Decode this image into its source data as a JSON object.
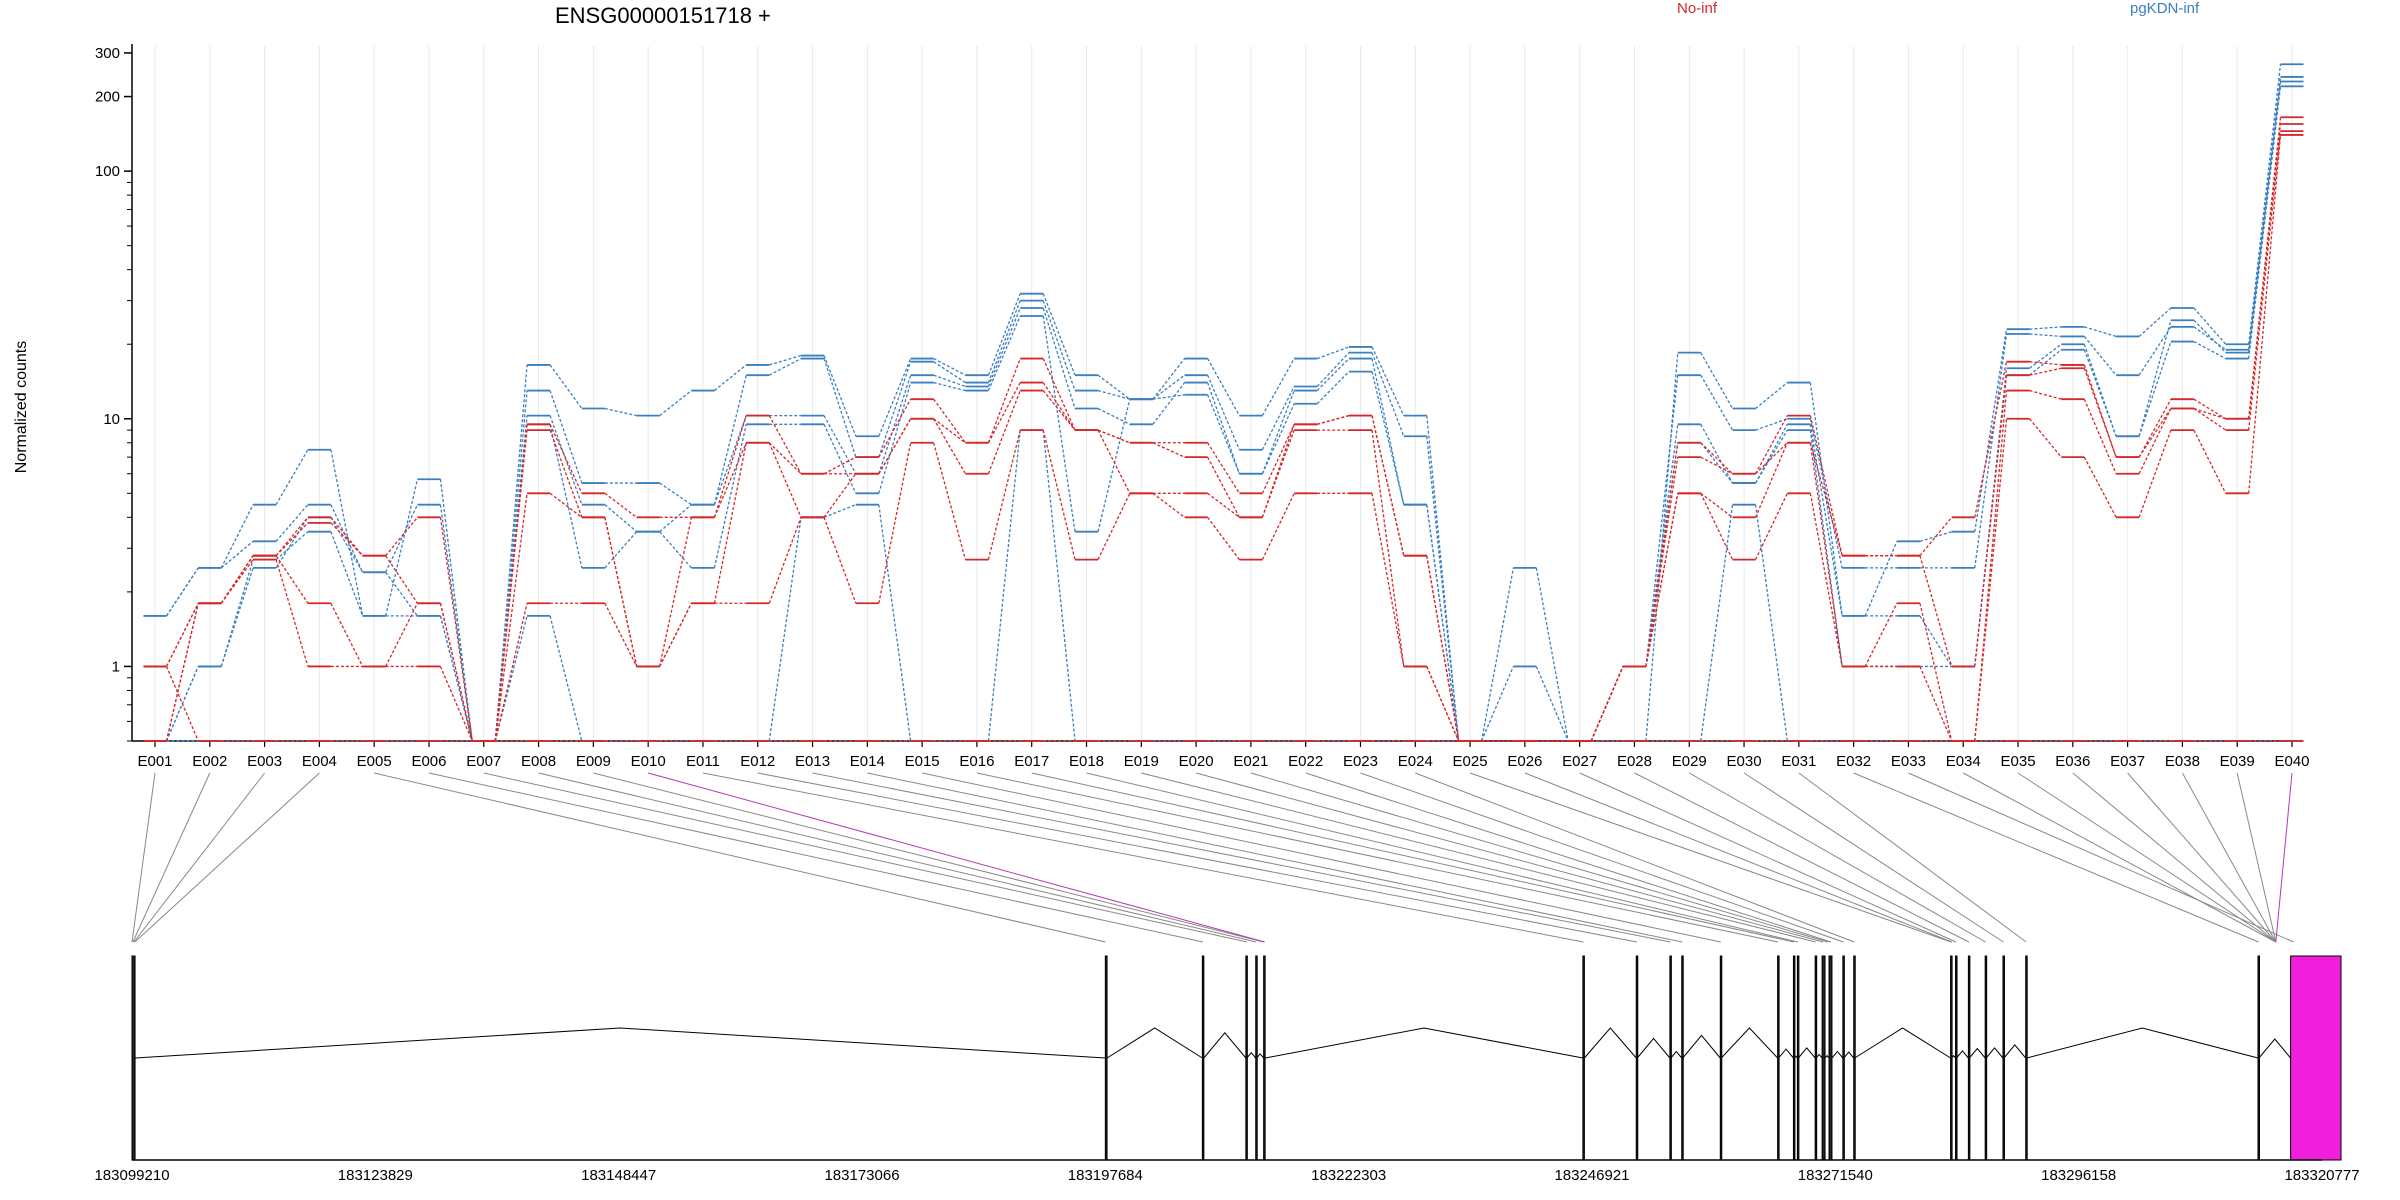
{
  "chart_data": {
    "type": "line",
    "title": "ENSG00000151718 +",
    "ylabel": "Normalized counts",
    "y_scale": "log",
    "ylim": [
      0.5,
      320
    ],
    "y_ticks": [
      1,
      10,
      100,
      200,
      300
    ],
    "y_tick_labels": [
      "1",
      "10",
      "100",
      "200",
      "300"
    ],
    "grid": "vertical lines at exon centers",
    "legend": [
      {
        "name": "No-inf",
        "color": "#d62728",
        "placement": "top-center"
      },
      {
        "name": "pgKDN-inf",
        "color": "#3a7fc0",
        "placement": "top-right"
      }
    ],
    "categories": [
      "E001",
      "E002",
      "E003",
      "E004",
      "E005",
      "E006",
      "E007",
      "E008",
      "E009",
      "E010",
      "E011",
      "E012",
      "E013",
      "E014",
      "E015",
      "E016",
      "E017",
      "E018",
      "E019",
      "E020",
      "E021",
      "E022",
      "E023",
      "E024",
      "E025",
      "E026",
      "E027",
      "E028",
      "E029",
      "E030",
      "E031",
      "E032",
      "E033",
      "E034",
      "E035",
      "E036",
      "E037",
      "E038",
      "E039",
      "E040"
    ],
    "series": [
      {
        "group": "pgKDN-inf",
        "color": "#3a7fc0",
        "values": [
          1.6,
          2.5,
          4.5,
          7.5,
          1.6,
          5.7,
          0.5,
          16.5,
          11,
          10.3,
          13,
          16.5,
          18,
          8.5,
          17.5,
          15,
          32,
          15,
          12,
          17.5,
          10.3,
          17.5,
          19.5,
          10.3,
          0.5,
          2.5,
          0.5,
          0.5,
          18.5,
          11,
          14,
          1.6,
          3.2,
          3.5,
          23,
          23.5,
          21.5,
          28,
          20,
          270
        ]
      },
      {
        "group": "pgKDN-inf",
        "color": "#3a7fc0",
        "values": [
          1.6,
          2.5,
          3.2,
          4.5,
          2.4,
          4.5,
          0.5,
          13,
          5.5,
          5.5,
          4.5,
          15,
          17.5,
          7,
          17,
          14,
          30,
          13,
          12,
          15,
          7.5,
          13.5,
          18.5,
          8.5,
          0.5,
          1,
          0.5,
          1,
          15,
          9,
          10,
          2.5,
          2.5,
          2.5,
          22,
          21.5,
          15,
          23.5,
          19,
          240
        ]
      },
      {
        "group": "pgKDN-inf",
        "color": "#3a7fc0",
        "values": [
          0.5,
          1,
          2.5,
          4,
          2.4,
          1.6,
          0.5,
          10.3,
          4.5,
          3.5,
          4.5,
          10.3,
          10.3,
          6,
          15,
          13.5,
          28,
          11,
          9.5,
          14,
          6,
          13,
          17.5,
          4.5,
          0.5,
          0.5,
          0.5,
          1,
          9.5,
          5.5,
          9.5,
          1.6,
          1.6,
          1,
          16,
          20,
          8.5,
          25,
          18.5,
          230
        ]
      },
      {
        "group": "pgKDN-inf",
        "color": "#3a7fc0",
        "values": [
          0.5,
          1,
          2.7,
          3.5,
          1.6,
          1.6,
          0.5,
          9.5,
          2.5,
          3.5,
          2.5,
          9.5,
          9.5,
          5,
          14,
          13,
          26,
          3.5,
          12,
          12.5,
          6,
          11.5,
          15.5,
          4.5,
          0.5,
          0.5,
          0.5,
          1,
          8,
          5.5,
          9,
          1,
          1,
          1,
          15,
          19,
          8.5,
          20.5,
          17.5,
          220
        ]
      },
      {
        "group": "pgKDN-inf",
        "color": "#3a7fc0",
        "values": [
          0.5,
          0.5,
          0.5,
          0.5,
          0.5,
          0.5,
          0.5,
          1.6,
          0.5,
          0.5,
          0.5,
          0.5,
          4,
          4.5,
          0.5,
          0.5,
          9,
          0.5,
          0.5,
          0.5,
          0.5,
          0.5,
          0.5,
          0.5,
          0.5,
          0.5,
          0.5,
          0.5,
          0.5,
          4.5,
          0.5,
          0.5,
          0.5,
          0.5,
          0.5,
          0.5,
          0.5,
          0.5,
          0.5,
          0.5
        ]
      },
      {
        "group": "No-inf",
        "color": "#d62728",
        "values": [
          1,
          1.8,
          2.8,
          4,
          2.8,
          4,
          0.5,
          9.5,
          5,
          4,
          4,
          10.3,
          6,
          7,
          12,
          8,
          17.5,
          9,
          8,
          8,
          5,
          9.5,
          10.3,
          2.8,
          0.5,
          0.5,
          0.5,
          1,
          8,
          6,
          10.3,
          2.8,
          2.8,
          4,
          17,
          16.5,
          7,
          12,
          10,
          165
        ]
      },
      {
        "group": "No-inf",
        "color": "#d62728",
        "values": [
          0.5,
          1.8,
          2.8,
          3.8,
          2.8,
          1.8,
          0.5,
          9,
          4,
          1,
          4,
          8,
          6,
          6,
          10,
          8,
          14,
          9,
          8,
          7,
          4,
          9.5,
          10.3,
          2.8,
          0.5,
          0.5,
          0.5,
          1,
          7,
          6,
          8,
          2.8,
          2.8,
          1,
          15,
          16,
          7,
          11,
          10,
          155
        ]
      },
      {
        "group": "No-inf",
        "color": "#d62728",
        "values": [
          0.5,
          1.8,
          2.8,
          1.8,
          1,
          1.8,
          0.5,
          5,
          4,
          1,
          1.8,
          8,
          4,
          6,
          10,
          6,
          13,
          9,
          5,
          5,
          4,
          9,
          9,
          1,
          0.5,
          0.5,
          0.5,
          1,
          5,
          4,
          8,
          1,
          1.8,
          0.5,
          13,
          12,
          6,
          11,
          9,
          145
        ]
      },
      {
        "group": "No-inf",
        "color": "#d62728",
        "values": [
          1,
          1.8,
          2.7,
          1,
          1,
          1,
          0.5,
          1.8,
          1.8,
          1,
          1.8,
          1.8,
          4,
          1.8,
          8,
          2.7,
          9,
          2.7,
          5,
          4,
          2.7,
          5,
          5,
          1,
          0.5,
          0.5,
          0.5,
          1,
          5,
          2.7,
          5,
          1,
          1,
          0.5,
          10,
          7,
          4,
          9,
          5,
          140
        ]
      },
      {
        "group": "No-inf",
        "color": "#d62728",
        "values": [
          1,
          0.5,
          0.5,
          0.5,
          0.5,
          0.5,
          0.5,
          0.5,
          0.5,
          0.5,
          0.5,
          0.5,
          0.5,
          0.5,
          0.5,
          0.5,
          0.5,
          0.5,
          0.5,
          0.5,
          0.5,
          0.5,
          0.5,
          0.5,
          0.5,
          0.5,
          0.5,
          0.5,
          0.5,
          0.5,
          0.5,
          0.5,
          0.5,
          0.5,
          0.5,
          0.5,
          0.5,
          0.5,
          0.5,
          0.5
        ]
      }
    ],
    "gene_model": {
      "genomic_range": [
        183099210,
        183320777
      ],
      "axis_ticks": [
        183099210,
        183123829,
        183148447,
        183173066,
        183197684,
        183222303,
        183246921,
        183271540,
        183296158,
        183320777
      ],
      "exons": [
        {
          "start": 183099210,
          "end": 183099520
        },
        {
          "start": 183197684,
          "end": 183197860
        },
        {
          "start": 183207500,
          "end": 183207650
        },
        {
          "start": 183211900,
          "end": 183212000
        },
        {
          "start": 183212900,
          "end": 183213000
        },
        {
          "start": 183213700,
          "end": 183213850
        },
        {
          "start": 183246000,
          "end": 183246150
        },
        {
          "start": 183251400,
          "end": 183251500
        },
        {
          "start": 183254800,
          "end": 183254900
        },
        {
          "start": 183256000,
          "end": 183256100
        },
        {
          "start": 183259900,
          "end": 183260000
        },
        {
          "start": 183265700,
          "end": 183265800
        },
        {
          "start": 183267300,
          "end": 183267400
        },
        {
          "start": 183267700,
          "end": 183267800
        },
        {
          "start": 183269500,
          "end": 183269600
        },
        {
          "start": 183270200,
          "end": 183270500
        },
        {
          "start": 183270900,
          "end": 183271200
        },
        {
          "start": 183272300,
          "end": 183272400
        },
        {
          "start": 183273400,
          "end": 183273500
        },
        {
          "start": 183283200,
          "end": 183283300
        },
        {
          "start": 183283700,
          "end": 183283800
        },
        {
          "start": 183285000,
          "end": 183285100
        },
        {
          "start": 183286700,
          "end": 183286800
        },
        {
          "start": 183288500,
          "end": 183288600
        },
        {
          "start": 183290800,
          "end": 183290900
        },
        {
          "start": 183314300,
          "end": 183314400
        },
        {
          "start": 183317600,
          "end": 183322700,
          "highlight": true,
          "color": "#f01fdc"
        }
      ],
      "exon_links": [
        183099210,
        183099300,
        183099400,
        183099500,
        183197700,
        183207560,
        183212000,
        183212950,
        183213700,
        183213800,
        183246050,
        183251450,
        183254850,
        183256050,
        183259950,
        183265750,
        183267350,
        183267750,
        183269550,
        183270300,
        183270800,
        183271100,
        183272350,
        183273450,
        183283250,
        183283350,
        183283750,
        183285050,
        183286750,
        183288550,
        183290850,
        183314350,
        183317900
      ],
      "highlight_link_exons": [
        "E010",
        "E040"
      ],
      "highlight_color": "#b03ab8"
    }
  }
}
